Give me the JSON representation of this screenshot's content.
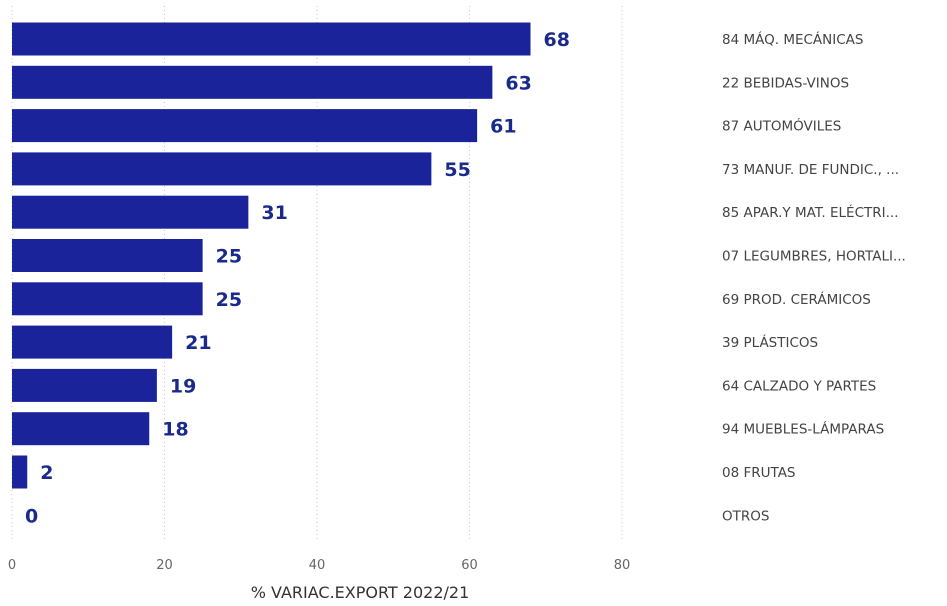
{
  "chart_data": {
    "type": "bar",
    "orientation": "horizontal",
    "categories": [
      "84 MÁQ. MECÁNICAS",
      "22 BEBIDAS-VINOS",
      "87 AUTOMÓVILES",
      "73 MANUF. DE FUNDIC., ...",
      "85 APAR.Y MAT. ELÉCTRI...",
      "07 LEGUMBRES, HORTALI...",
      "69 PROD. CERÁMICOS",
      "39 PLÁSTICOS",
      "64 CALZADO Y PARTES",
      "94 MUEBLES-LÁMPARAS",
      "08 FRUTAS",
      "OTROS"
    ],
    "values": [
      68,
      63,
      61,
      55,
      31,
      25,
      25,
      21,
      19,
      18,
      2,
      0
    ],
    "data_labels": [
      "68",
      "63",
      "61",
      "55",
      "31",
      "25",
      "25",
      "21",
      "19",
      "18",
      "2",
      "0"
    ],
    "xlabel": "% VARIAC.EXPORT 2022/21",
    "xlim": [
      0,
      80
    ],
    "xticks": [
      0,
      20,
      40,
      60,
      80
    ],
    "xtick_labels": [
      "0",
      "20",
      "40",
      "60",
      "80"
    ],
    "grid": true,
    "category_labels_position": "right",
    "bar_color": "#1a239a",
    "label_color": "#1a2a8c"
  }
}
